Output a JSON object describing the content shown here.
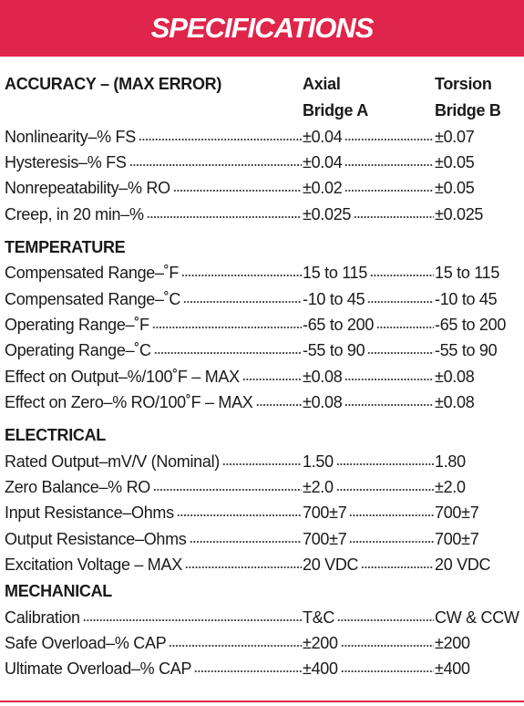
{
  "header": {
    "title": "SPECIFICATIONS"
  },
  "columns": [
    {
      "line1": "Axial",
      "line2": "Bridge A"
    },
    {
      "line1": "Torsion",
      "line2": "Bridge B"
    }
  ],
  "sections": [
    {
      "title": "ACCURACY – (MAX ERROR)",
      "rows": [
        [
          "Nonlinearity–% FS",
          "±0.04",
          "±0.07"
        ],
        [
          "Hysteresis–% FS",
          "±0.04",
          "±0.05"
        ],
        [
          "Nonrepeatability–% RO",
          "±0.02",
          "±0.05"
        ],
        [
          "Creep, in 20 min–%",
          "±0.025",
          "±0.025"
        ]
      ]
    },
    {
      "title": "TEMPERATURE",
      "rows": [
        [
          "Compensated Range–˚F",
          "15 to 115",
          "15 to 115"
        ],
        [
          "Compensated Range–˚C",
          "-10 to 45",
          "-10 to 45"
        ],
        [
          "Operating Range–˚F",
          "-65 to 200",
          "-65 to 200"
        ],
        [
          "Operating Range–˚C",
          "-55 to 90",
          "-55 to 90"
        ],
        [
          "Effect on Output–%/100˚F – MAX",
          "±0.08",
          "±0.08"
        ],
        [
          "Effect on Zero–% RO/100˚F – MAX",
          "±0.08",
          "±0.08"
        ]
      ]
    },
    {
      "title": "ELECTRICAL",
      "rows": [
        [
          "Rated Output–mV/V (Nominal)",
          "1.50",
          "1.80"
        ],
        [
          "Zero Balance–% RO",
          "±2.0",
          "±2.0"
        ],
        [
          "Input Resistance–Ohms",
          "700±7",
          "700±7"
        ],
        [
          "Output Resistance–Ohms",
          "700±7",
          "700±7"
        ],
        [
          "Excitation Voltage – MAX",
          "20 VDC",
          "20 VDC"
        ]
      ]
    },
    {
      "title": "MECHANICAL",
      "rows": [
        [
          "Calibration",
          "T&C",
          "CW & CCW"
        ],
        [
          "Safe Overload–% CAP",
          "±200",
          "±200"
        ],
        [
          "Ultimate Overload–% CAP",
          "±400",
          "±400"
        ]
      ]
    }
  ]
}
